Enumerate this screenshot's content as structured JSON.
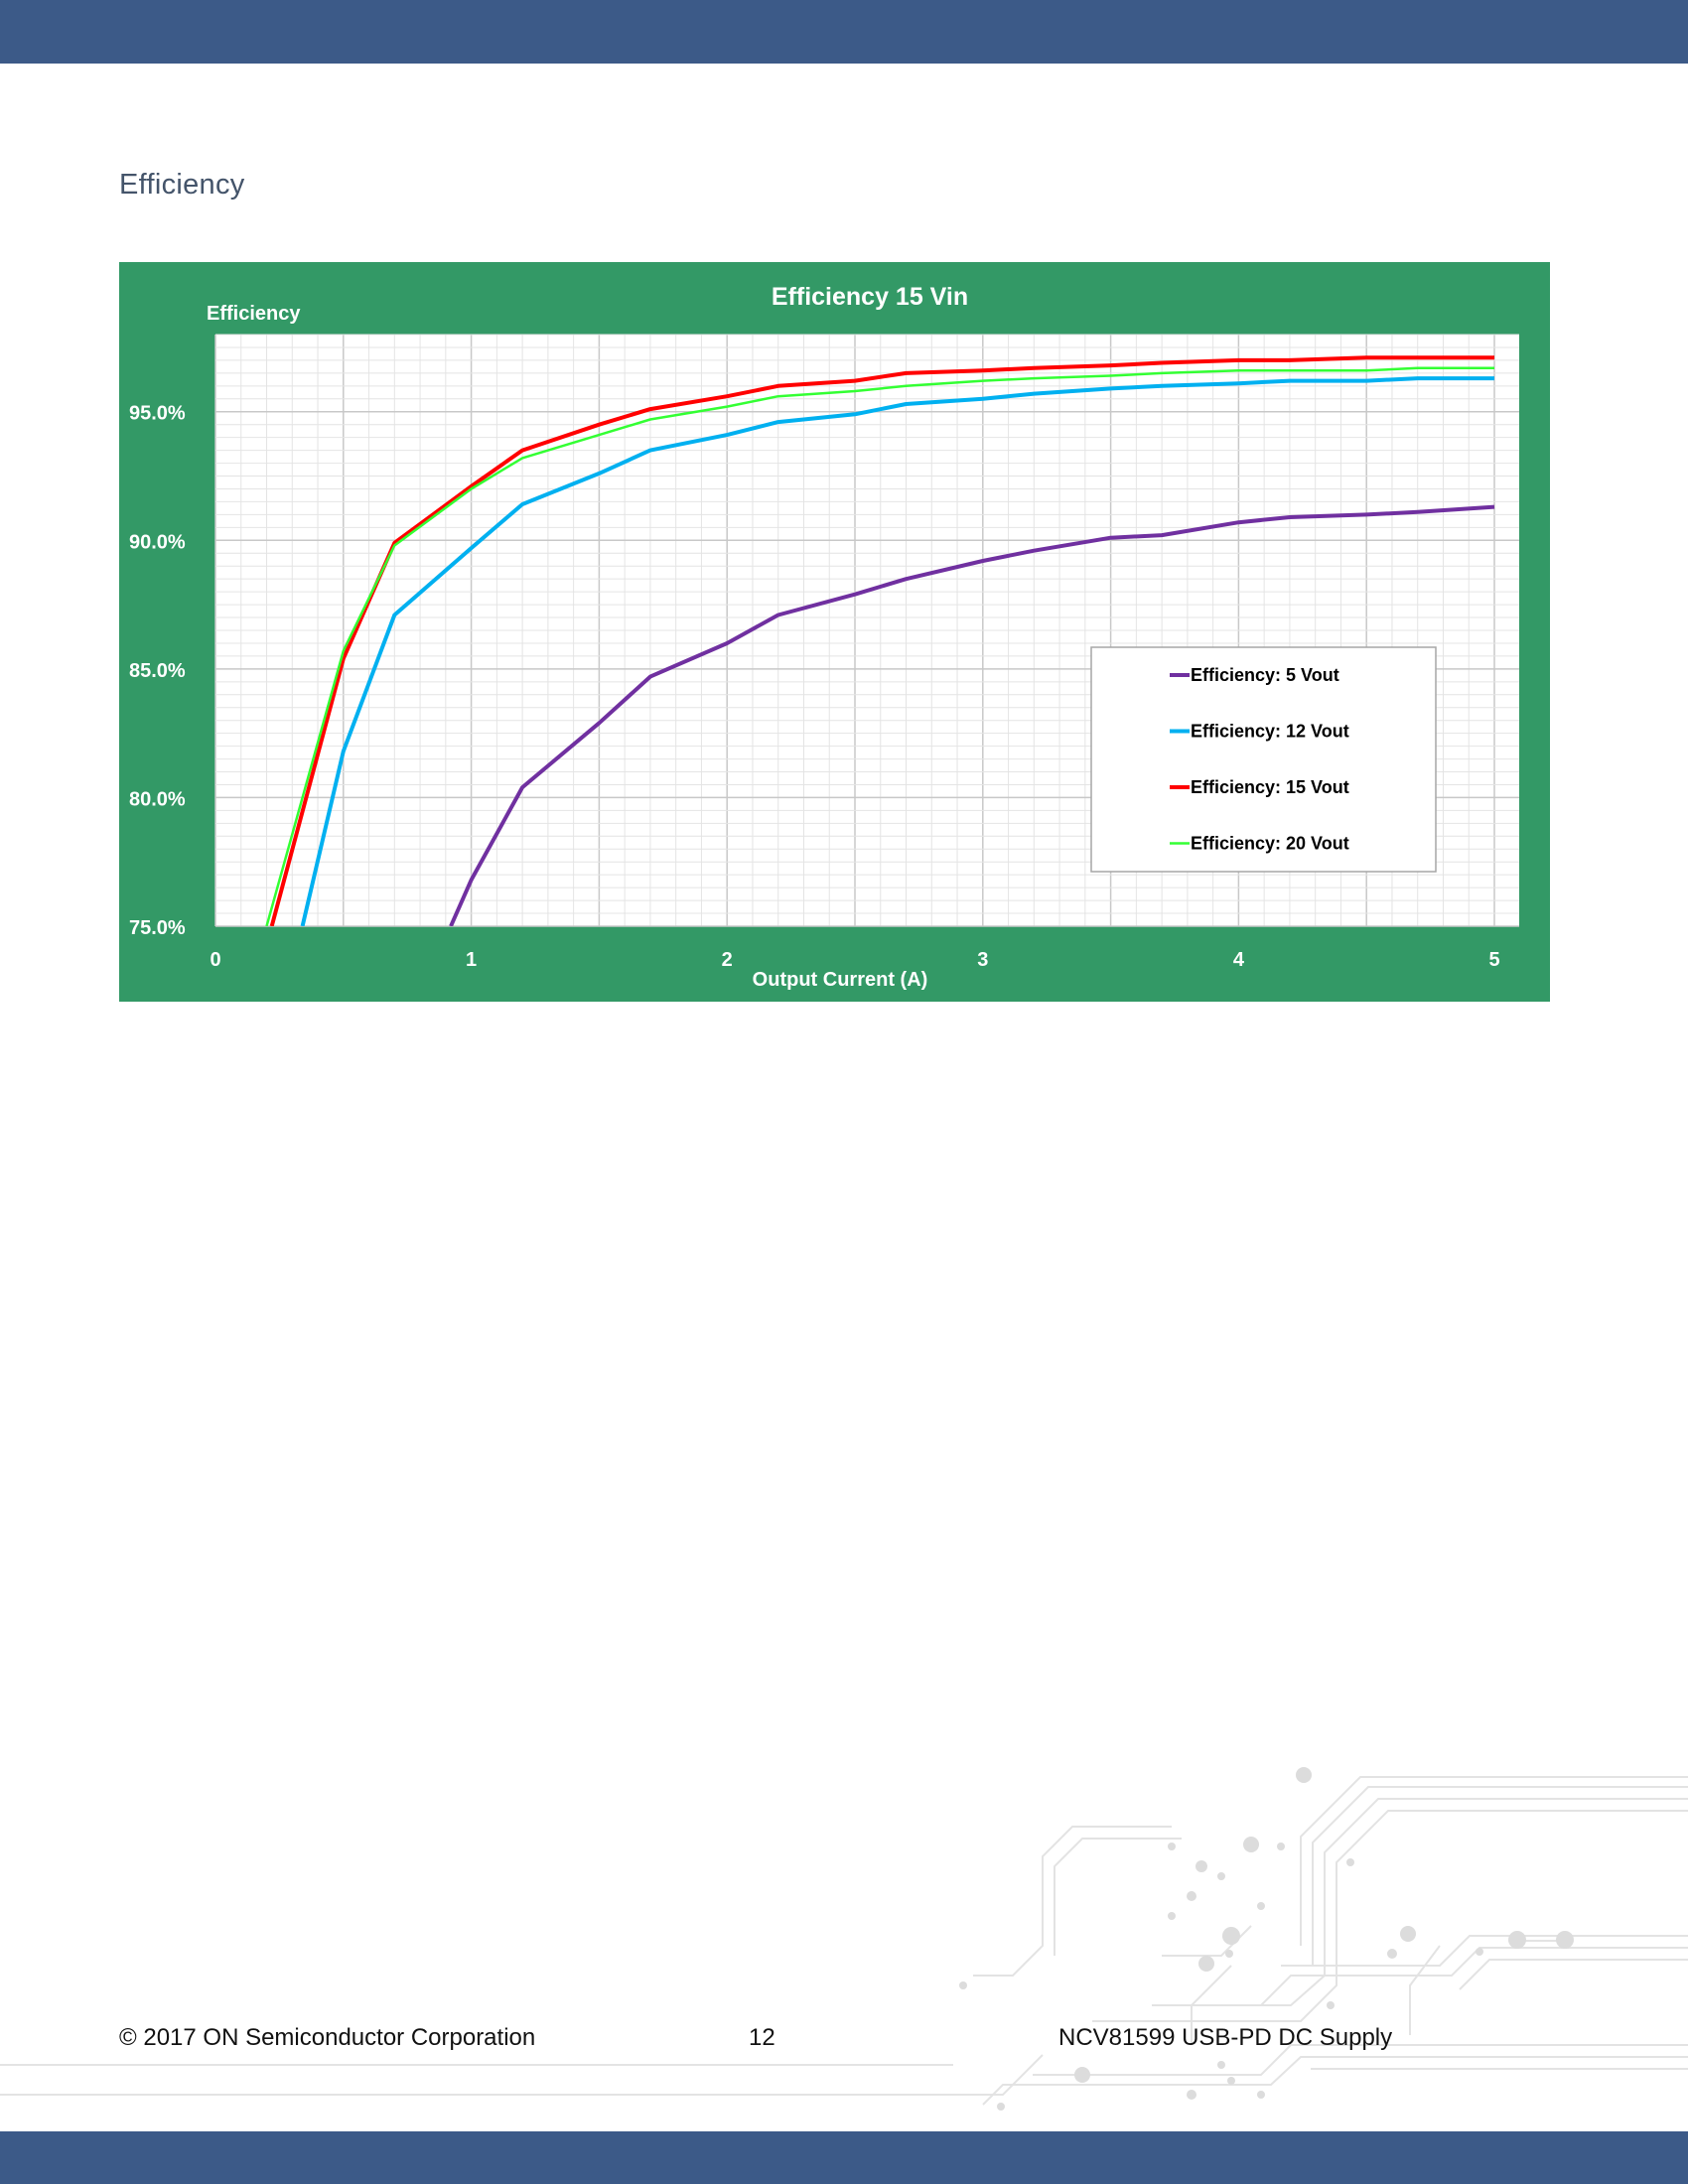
{
  "header": {
    "bar_color": "#3c5a88"
  },
  "section": {
    "heading": "Efficiency"
  },
  "chart_data": {
    "type": "line",
    "title": "Efficiency 15 Vin",
    "xlabel": "Output Current (A)",
    "ylabel": "Efficiency",
    "xlim": [
      0,
      5
    ],
    "ylim": [
      0.75,
      0.98
    ],
    "x_ticks": [
      "0",
      "1",
      "2",
      "3",
      "4",
      "5"
    ],
    "y_ticks": [
      "75.0%",
      "80.0%",
      "85.0%",
      "90.0%",
      "95.0%"
    ],
    "grid": true,
    "legend_position": "lower-right",
    "background_color": "#339966",
    "series": [
      {
        "name": "Efficiency: 5 Vout",
        "color": "#7030a0",
        "x": [
          0.92,
          1.0,
          1.2,
          1.5,
          1.7,
          2.0,
          2.2,
          2.5,
          2.7,
          3.0,
          3.2,
          3.5,
          3.7,
          4.0,
          4.2,
          4.5,
          4.7,
          5.0
        ],
        "y": [
          0.75,
          0.768,
          0.804,
          0.829,
          0.847,
          0.86,
          0.871,
          0.879,
          0.885,
          0.892,
          0.896,
          0.901,
          0.902,
          0.907,
          0.909,
          0.91,
          0.911,
          0.913
        ]
      },
      {
        "name": "Efficiency: 12 Vout",
        "color": "#00b0f0",
        "x": [
          0.34,
          0.5,
          0.7,
          1.0,
          1.2,
          1.5,
          1.7,
          2.0,
          2.2,
          2.5,
          2.7,
          3.0,
          3.2,
          3.5,
          3.7,
          4.0,
          4.2,
          4.5,
          4.7,
          5.0
        ],
        "y": [
          0.75,
          0.818,
          0.871,
          0.897,
          0.914,
          0.926,
          0.935,
          0.941,
          0.946,
          0.949,
          0.953,
          0.955,
          0.957,
          0.959,
          0.96,
          0.961,
          0.962,
          0.962,
          0.963,
          0.963
        ]
      },
      {
        "name": "Efficiency: 15 Vout",
        "color": "#ff0000",
        "x": [
          0.22,
          0.5,
          0.7,
          1.0,
          1.2,
          1.5,
          1.7,
          2.0,
          2.2,
          2.5,
          2.7,
          3.0,
          3.2,
          3.5,
          3.7,
          4.0,
          4.2,
          4.5,
          4.7,
          5.0
        ],
        "y": [
          0.75,
          0.854,
          0.899,
          0.921,
          0.935,
          0.945,
          0.951,
          0.956,
          0.96,
          0.962,
          0.965,
          0.966,
          0.967,
          0.968,
          0.969,
          0.97,
          0.97,
          0.971,
          0.971,
          0.971
        ]
      },
      {
        "name": "Efficiency: 20 Vout",
        "color": "#33ff33",
        "x": [
          0.2,
          0.5,
          0.7,
          1.0,
          1.2,
          1.5,
          1.7,
          2.0,
          2.2,
          2.5,
          2.7,
          3.0,
          3.2,
          3.5,
          3.7,
          4.0,
          4.2,
          4.5,
          4.7,
          5.0
        ],
        "y": [
          0.75,
          0.857,
          0.898,
          0.92,
          0.932,
          0.941,
          0.947,
          0.952,
          0.956,
          0.958,
          0.96,
          0.962,
          0.963,
          0.964,
          0.965,
          0.966,
          0.966,
          0.966,
          0.967,
          0.967
        ]
      }
    ]
  },
  "footer": {
    "copyright": "© 2017 ON Semiconductor Corporation",
    "page_number": "12",
    "document_title": "NCV81599 USB-PD DC Supply",
    "bar_color": "#3c5a88"
  }
}
